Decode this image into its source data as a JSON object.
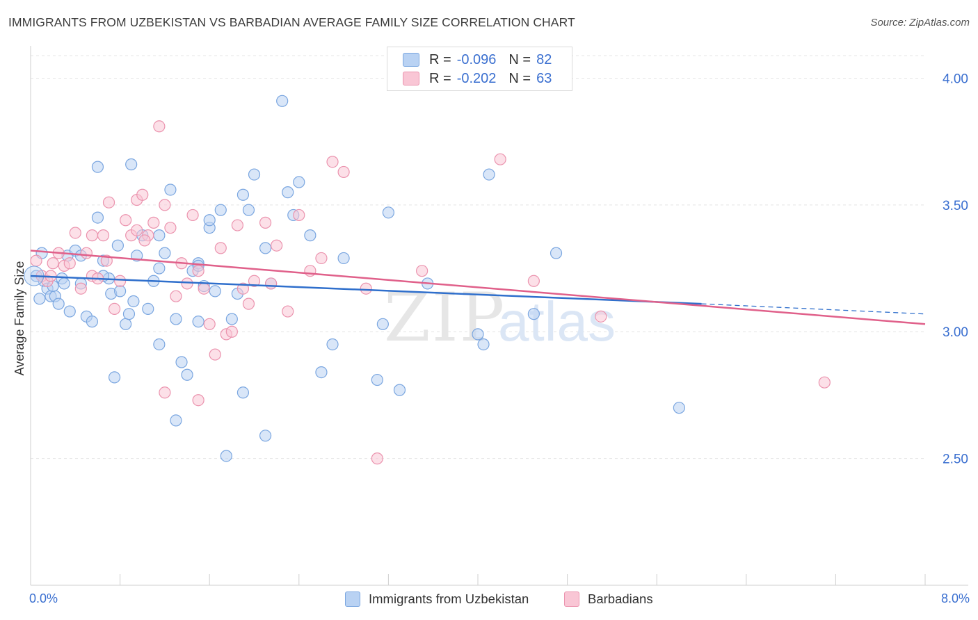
{
  "title": "IMMIGRANTS FROM UZBEKISTAN VS BARBADIAN AVERAGE FAMILY SIZE CORRELATION CHART",
  "source": "Source: ZipAtlas.com",
  "watermark": {
    "zip": "ZIP",
    "atlas": "atlas"
  },
  "legend": {
    "r_label": "R =",
    "n_label": "N =",
    "rows": [
      {
        "r": "-0.096",
        "n": "82",
        "fill": "#b9d2f3",
        "stroke": "#7aa6e0"
      },
      {
        "r": "-0.202",
        "n": "63",
        "fill": "#f9c6d5",
        "stroke": "#eb93ae"
      }
    ]
  },
  "chart_data": {
    "type": "scatter",
    "ylabel": "Average Family Size",
    "x_tick_labels": [
      "0.0%",
      "8.0%"
    ],
    "xlim": [
      0,
      8
    ],
    "ylim": [
      2.0,
      4.1
    ],
    "y_ticks": [
      2.5,
      3.0,
      3.5,
      4.0
    ],
    "y_tick_labels": [
      "2.50",
      "3.00",
      "3.50",
      "4.00"
    ],
    "grid": true,
    "series": [
      {
        "name": "Immigrants from Uzbekistan",
        "color": "#7aa6e0",
        "fill": "#b9d2f3",
        "line_color": "#2f6fcc",
        "trend": {
          "x0": 0.0,
          "y0": 3.22,
          "x1": 6.0,
          "y1": 3.11,
          "dash_to_x": 8.0,
          "dash_to_y": 3.07
        },
        "points": [
          [
            0.05,
            3.22
          ],
          [
            0.08,
            3.13
          ],
          [
            0.12,
            3.2
          ],
          [
            0.15,
            3.17
          ],
          [
            0.18,
            3.14
          ],
          [
            0.22,
            3.14
          ],
          [
            0.25,
            3.11
          ],
          [
            0.28,
            3.21
          ],
          [
            0.3,
            3.19
          ],
          [
            0.33,
            3.3
          ],
          [
            0.4,
            3.32
          ],
          [
            0.45,
            3.3
          ],
          [
            0.5,
            3.06
          ],
          [
            0.55,
            3.04
          ],
          [
            0.6,
            3.45
          ],
          [
            0.65,
            3.28
          ],
          [
            0.7,
            3.21
          ],
          [
            0.72,
            3.15
          ],
          [
            0.78,
            3.34
          ],
          [
            0.8,
            3.16
          ],
          [
            0.85,
            3.03
          ],
          [
            0.88,
            3.07
          ],
          [
            0.92,
            3.12
          ],
          [
            0.95,
            3.3
          ],
          [
            1.0,
            3.38
          ],
          [
            1.05,
            3.09
          ],
          [
            1.1,
            3.2
          ],
          [
            1.15,
            3.25
          ],
          [
            1.2,
            3.31
          ],
          [
            1.25,
            3.56
          ],
          [
            1.3,
            3.05
          ],
          [
            1.35,
            2.88
          ],
          [
            1.4,
            2.83
          ],
          [
            1.45,
            3.24
          ],
          [
            1.5,
            3.27
          ],
          [
            1.55,
            3.18
          ],
          [
            1.6,
            3.41
          ],
          [
            1.65,
            3.16
          ],
          [
            1.7,
            3.48
          ],
          [
            1.8,
            3.05
          ],
          [
            1.85,
            3.15
          ],
          [
            1.9,
            3.54
          ],
          [
            1.95,
            3.48
          ],
          [
            2.0,
            3.62
          ],
          [
            2.1,
            3.33
          ],
          [
            2.15,
            3.19
          ],
          [
            2.3,
            3.55
          ],
          [
            2.35,
            3.46
          ],
          [
            2.4,
            3.59
          ],
          [
            2.5,
            3.38
          ],
          [
            2.6,
            2.84
          ],
          [
            2.7,
            2.95
          ],
          [
            2.8,
            3.29
          ],
          [
            3.1,
            2.81
          ],
          [
            3.15,
            3.03
          ],
          [
            3.3,
            2.77
          ],
          [
            3.55,
            3.19
          ],
          [
            4.0,
            2.99
          ],
          [
            4.05,
            2.95
          ],
          [
            4.1,
            3.62
          ],
          [
            4.5,
            3.07
          ],
          [
            4.7,
            3.31
          ],
          [
            5.8,
            2.7
          ],
          [
            0.1,
            3.31
          ],
          [
            0.75,
            2.82
          ],
          [
            1.15,
            3.38
          ],
          [
            1.3,
            2.65
          ],
          [
            1.6,
            3.44
          ],
          [
            2.1,
            2.59
          ],
          [
            1.75,
            2.51
          ],
          [
            1.9,
            2.76
          ],
          [
            2.25,
            3.91
          ],
          [
            0.6,
            3.65
          ],
          [
            0.9,
            3.66
          ],
          [
            1.5,
            3.04
          ],
          [
            3.2,
            3.47
          ],
          [
            0.35,
            3.08
          ],
          [
            0.45,
            3.19
          ],
          [
            1.15,
            2.95
          ],
          [
            1.5,
            3.26
          ],
          [
            0.2,
            3.18
          ],
          [
            0.65,
            3.22
          ]
        ]
      },
      {
        "name": "Barbadians",
        "color": "#eb93ae",
        "fill": "#f9c6d5",
        "line_color": "#e0608a",
        "trend": {
          "x0": 0.0,
          "y0": 3.32,
          "x1": 8.0,
          "y1": 3.03
        },
        "points": [
          [
            0.05,
            3.28
          ],
          [
            0.1,
            3.22
          ],
          [
            0.15,
            3.2
          ],
          [
            0.2,
            3.27
          ],
          [
            0.25,
            3.31
          ],
          [
            0.3,
            3.26
          ],
          [
            0.35,
            3.27
          ],
          [
            0.4,
            3.39
          ],
          [
            0.45,
            3.17
          ],
          [
            0.5,
            3.31
          ],
          [
            0.55,
            3.22
          ],
          [
            0.6,
            3.21
          ],
          [
            0.65,
            3.38
          ],
          [
            0.7,
            3.51
          ],
          [
            0.75,
            3.09
          ],
          [
            0.8,
            3.2
          ],
          [
            0.85,
            3.44
          ],
          [
            0.9,
            3.38
          ],
          [
            0.95,
            3.52
          ],
          [
            1.0,
            3.54
          ],
          [
            1.05,
            3.38
          ],
          [
            1.1,
            3.43
          ],
          [
            1.15,
            3.81
          ],
          [
            1.2,
            3.5
          ],
          [
            1.25,
            3.41
          ],
          [
            1.3,
            3.14
          ],
          [
            1.35,
            3.27
          ],
          [
            1.4,
            3.19
          ],
          [
            1.45,
            3.46
          ],
          [
            1.5,
            3.24
          ],
          [
            1.55,
            3.17
          ],
          [
            1.6,
            3.03
          ],
          [
            1.65,
            2.91
          ],
          [
            1.7,
            3.33
          ],
          [
            1.75,
            2.99
          ],
          [
            1.8,
            3.0
          ],
          [
            1.85,
            3.42
          ],
          [
            1.9,
            3.17
          ],
          [
            1.95,
            3.11
          ],
          [
            2.0,
            3.2
          ],
          [
            2.1,
            3.43
          ],
          [
            2.2,
            3.34
          ],
          [
            2.3,
            3.08
          ],
          [
            2.4,
            3.46
          ],
          [
            2.5,
            3.24
          ],
          [
            2.6,
            3.29
          ],
          [
            2.7,
            3.67
          ],
          [
            2.8,
            3.63
          ],
          [
            3.0,
            3.17
          ],
          [
            3.1,
            2.5
          ],
          [
            3.5,
            3.24
          ],
          [
            4.2,
            3.68
          ],
          [
            4.5,
            3.2
          ],
          [
            5.1,
            3.06
          ],
          [
            7.1,
            2.8
          ],
          [
            0.55,
            3.38
          ],
          [
            0.95,
            3.4
          ],
          [
            1.2,
            2.76
          ],
          [
            1.5,
            2.73
          ],
          [
            0.68,
            3.28
          ],
          [
            1.02,
            3.36
          ],
          [
            2.15,
            3.19
          ],
          [
            0.18,
            3.22
          ]
        ]
      }
    ]
  }
}
